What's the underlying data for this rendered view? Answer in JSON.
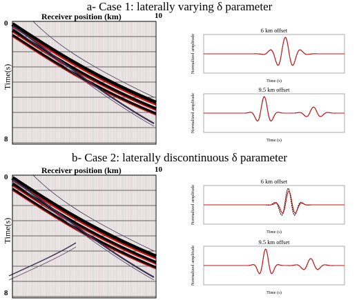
{
  "figure": {
    "case1": {
      "title": "a- Case 1: laterally varying δ parameter",
      "receiver_label": "Receiver position (km)",
      "time_label": "Time(s)",
      "x_ticks": [
        "0",
        "10"
      ],
      "y_ticks": [
        "0",
        "8"
      ],
      "trace_plots": [
        {
          "title": "6 km offset",
          "ylabel": "Normalized amplitude",
          "xlabel": "Time (s)"
        },
        {
          "title": "9.5 km offset",
          "ylabel": "Normalized amplitude",
          "xlabel": "Time (s)"
        }
      ]
    },
    "case2": {
      "title": "b- Case 2: laterally discontinuous δ parameter",
      "receiver_label": "Receiver position (km)",
      "time_label": "Time(s)",
      "x_ticks": [
        "0",
        "10"
      ],
      "y_ticks": [
        "0",
        "8"
      ],
      "trace_plots": [
        {
          "title": "6 km offset",
          "ylabel": "Normalized amplitude",
          "xlabel": "Time (s)"
        },
        {
          "title": "9.5 km offset",
          "ylabel": "Normalized amplitude",
          "xlabel": "Time (s)"
        }
      ]
    }
  },
  "colors": {
    "observed": "#000000",
    "modeled": "#d11010",
    "background_traces": "#c9bcbc",
    "gridline": "#000000"
  }
}
